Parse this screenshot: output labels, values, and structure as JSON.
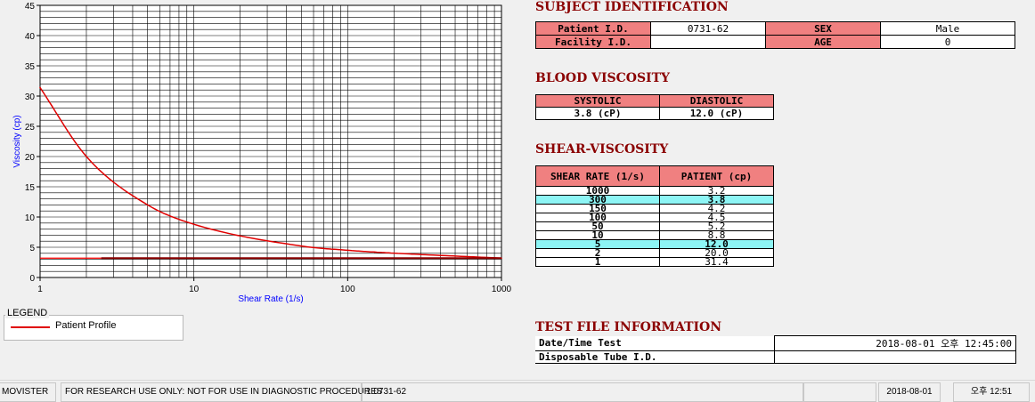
{
  "chart_data": {
    "type": "line",
    "xlabel": "Shear Rate (1/s)",
    "ylabel": "Viscosity (cp)",
    "xscale": "log",
    "xlim": [
      1,
      1000
    ],
    "ylim": [
      0,
      45
    ],
    "xticks": [
      "1",
      "10",
      "100",
      "1000"
    ],
    "yticks": [
      "0",
      "5",
      "10",
      "15",
      "20",
      "25",
      "30",
      "35",
      "40",
      "45"
    ],
    "grid": true,
    "series": [
      {
        "name": "Patient Profile",
        "color": "#e00000",
        "x": [
          1,
          2,
          5,
          10,
          50,
          100,
          150,
          300,
          1000
        ],
        "y": [
          31.4,
          20.0,
          12.0,
          8.8,
          5.2,
          4.5,
          4.2,
          3.8,
          3.2
        ]
      },
      {
        "name": "",
        "color": "#ff0000",
        "x": [
          1,
          1000
        ],
        "y": [
          3.2,
          3.2
        ]
      },
      {
        "name": "",
        "color": "#8b0000",
        "x": [
          2.5,
          1000
        ],
        "y": [
          3.2,
          3.2
        ]
      }
    ]
  },
  "legend": {
    "title": "LEGEND",
    "item": "Patient Profile"
  },
  "subject": {
    "title": "SUBJECT IDENTIFICATION",
    "patient_id_label": "Patient I.D.",
    "patient_id": "0731-62",
    "sex_label": "SEX",
    "sex": "Male",
    "facility_label": "Facility I.D.",
    "facility": "",
    "age_label": "AGE",
    "age": "0"
  },
  "blood": {
    "title": "BLOOD VISCOSITY",
    "systolic_label": "SYSTOLIC",
    "diastolic_label": "DIASTOLIC",
    "systolic": "3.8 (cP)",
    "diastolic": "12.0 (cP)"
  },
  "shear": {
    "title": "SHEAR-VISCOSITY",
    "col1": "SHEAR RATE (1/s)",
    "col2": "PATIENT (cp)",
    "rows": [
      {
        "rate": "1000",
        "val": "3.2",
        "hl": false
      },
      {
        "rate": "300",
        "val": "3.8",
        "hl": true
      },
      {
        "rate": "150",
        "val": "4.2",
        "hl": false
      },
      {
        "rate": "100",
        "val": "4.5",
        "hl": false
      },
      {
        "rate": "50",
        "val": "5.2",
        "hl": false
      },
      {
        "rate": "10",
        "val": "8.8",
        "hl": false
      },
      {
        "rate": "5",
        "val": "12.0",
        "hl": true
      },
      {
        "rate": "2",
        "val": "20.0",
        "hl": false
      },
      {
        "rate": "1",
        "val": "31.4",
        "hl": false
      }
    ]
  },
  "testfile": {
    "title": "TEST FILE INFORMATION",
    "datetime_label": "Date/Time Test",
    "datetime": "2018-08-01  오후 12:45:00",
    "tube_label": "Disposable Tube I.D.",
    "tube": ""
  },
  "status": {
    "app": "MOVISTER",
    "notice": "FOR RESEARCH USE ONLY: NOT FOR USE IN DIAGNOSTIC PROCEDURES",
    "patient": "1  0731-62",
    "empty": "",
    "date": "2018-08-01",
    "time": "오후 12:51"
  }
}
